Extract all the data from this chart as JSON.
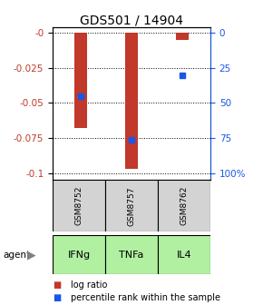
{
  "title": "GDS501 / 14904",
  "samples": [
    "GSM8752",
    "GSM8757",
    "GSM8762"
  ],
  "agents": [
    "IFNg",
    "TNFa",
    "IL4"
  ],
  "log_ratios": [
    -0.068,
    -0.097,
    -0.005
  ],
  "percentile_ranks": [
    45,
    76,
    30
  ],
  "ylim_left": [
    -0.105,
    0.004
  ],
  "ylim_right": [
    -3.5,
    110
  ],
  "yticks_left": [
    0,
    -0.025,
    -0.05,
    -0.075,
    -0.1
  ],
  "yticks_right": [
    0,
    25,
    50,
    75,
    100
  ],
  "ytick_labels_left": [
    "-0",
    "-0.025",
    "-0.05",
    "-0.075",
    "-0.1"
  ],
  "ytick_labels_right": [
    "0",
    "25",
    "50",
    "75",
    "100%"
  ],
  "bar_color": "#c0392b",
  "dot_color": "#1a56e8",
  "sample_box_color": "#d3d3d3",
  "agent_bg_color": "#b0f0a0",
  "left_axis_color": "#c0392b",
  "right_axis_color": "#1a56e8",
  "bar_width": 0.25,
  "figsize": [
    2.9,
    3.36
  ],
  "dpi": 100
}
